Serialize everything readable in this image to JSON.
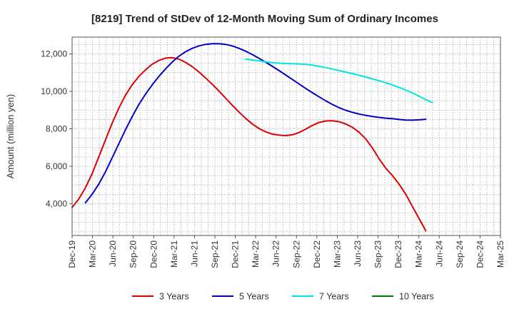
{
  "chart_data": {
    "type": "line",
    "title": "[8219]  Trend of StDev of 12-Month Moving Sum of Ordinary Incomes",
    "xlabel": "",
    "ylabel": "Amount (million yen)",
    "ylim": [
      2300,
      12900
    ],
    "yticks": [
      4000,
      6000,
      8000,
      10000,
      12000
    ],
    "ytick_labels": [
      "4,000",
      "6,000",
      "8,000",
      "10,000",
      "12,000"
    ],
    "x_tick_labels": [
      "Dec-19",
      "Mar-20",
      "Jun-20",
      "Sep-20",
      "Dec-20",
      "Mar-21",
      "Jun-21",
      "Sep-21",
      "Dec-21",
      "Mar-22",
      "Jun-22",
      "Sep-22",
      "Dec-22",
      "Mar-23",
      "Jun-23",
      "Sep-23",
      "Dec-23",
      "Mar-24",
      "Jun-24",
      "Sep-24",
      "Dec-24",
      "Mar-25"
    ],
    "grid": true,
    "legend_position": "bottom",
    "series": [
      {
        "name": "3 Years",
        "color": "#dd0000",
        "values": [
          3800,
          4250,
          4850,
          5600,
          6500,
          7400,
          8300,
          9100,
          9800,
          10350,
          10800,
          11150,
          11450,
          11650,
          11780,
          11800,
          11720,
          11550,
          11320,
          11040,
          10720,
          10380,
          10020,
          9640,
          9260,
          8900,
          8560,
          8260,
          8020,
          7840,
          7720,
          7660,
          7640,
          7680,
          7800,
          7980,
          8180,
          8340,
          8420,
          8430,
          8380,
          8260,
          8080,
          7820,
          7460,
          6980,
          6400,
          5900,
          5500,
          5050,
          4500,
          3850,
          3200,
          2550
        ]
      },
      {
        "name": "5 Years",
        "color": "#0000cc",
        "values": [
          null,
          null,
          4050,
          4500,
          5050,
          5700,
          6450,
          7200,
          7950,
          8650,
          9300,
          9850,
          10350,
          10800,
          11200,
          11570,
          11880,
          12120,
          12300,
          12430,
          12510,
          12550,
          12550,
          12510,
          12430,
          12300,
          12150,
          11970,
          11770,
          11560,
          11340,
          11110,
          10880,
          10640,
          10400,
          10160,
          9930,
          9710,
          9500,
          9300,
          9130,
          8990,
          8880,
          8790,
          8720,
          8660,
          8610,
          8570,
          8540,
          8500,
          8470,
          8460,
          8480,
          8510
        ]
      },
      {
        "name": "7 Years",
        "color": "#00e5e5",
        "values": [
          null,
          null,
          null,
          null,
          null,
          null,
          null,
          null,
          null,
          null,
          null,
          null,
          null,
          null,
          null,
          null,
          null,
          null,
          null,
          null,
          null,
          null,
          null,
          null,
          null,
          null,
          11720,
          11680,
          11630,
          11580,
          11540,
          11510,
          11490,
          11480,
          11470,
          11440,
          11400,
          11340,
          11270,
          11190,
          11110,
          11030,
          10950,
          10860,
          10770,
          10670,
          10570,
          10460,
          10340,
          10210,
          10070,
          9910,
          9740,
          9560,
          9400
        ]
      },
      {
        "name": "10 Years",
        "color": "#007700",
        "values": []
      }
    ]
  }
}
